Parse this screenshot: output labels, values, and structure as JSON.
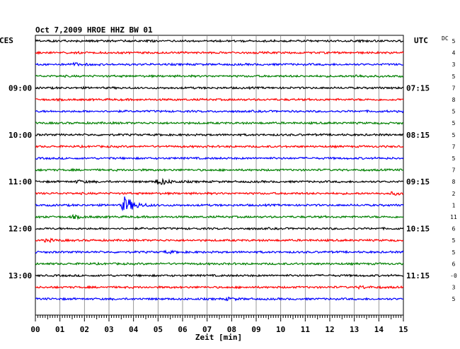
{
  "chart_data": {
    "type": "line",
    "title": "Oct 7,2009   HROE HHZ BW 01",
    "xlabel": "Zeit [min]",
    "left_axis_label": "CES",
    "right_axis_label": "UTC",
    "offset_column_label": "DC",
    "xlim": [
      0,
      15
    ],
    "x_ticks": [
      "00",
      "01",
      "02",
      "03",
      "04",
      "05",
      "06",
      "07",
      "08",
      "09",
      "10",
      "11",
      "12",
      "13",
      "14",
      "15"
    ],
    "left_time_labels": [
      {
        "row": 4,
        "text": "09:00"
      },
      {
        "row": 8,
        "text": "10:00"
      },
      {
        "row": 12,
        "text": "11:00"
      },
      {
        "row": 16,
        "text": "12:00"
      },
      {
        "row": 20,
        "text": "13:00"
      }
    ],
    "right_time_labels": [
      {
        "row": 4,
        "text": "07:15"
      },
      {
        "row": 8,
        "text": "08:15"
      },
      {
        "row": 12,
        "text": "09:15"
      },
      {
        "row": 16,
        "text": "10:15"
      },
      {
        "row": 20,
        "text": "11:15"
      }
    ],
    "trace_colors": [
      "#000000",
      "#ff0000",
      "#0000ff",
      "#008000"
    ],
    "offsets": [
      "5",
      "4",
      "3",
      "5",
      "7",
      "8",
      "5",
      "5",
      "5",
      "7",
      "5",
      "7",
      "8",
      "2",
      "1",
      "11",
      "6",
      "5",
      "5",
      "6",
      "-0",
      "3",
      "5"
    ],
    "events": [
      {
        "row": 2,
        "minute": 1.5,
        "amplitude": 1.6
      },
      {
        "row": 3,
        "minute": 13.0,
        "amplitude": 1.4
      },
      {
        "row": 12,
        "minute": 1.7,
        "amplitude": 1.4
      },
      {
        "row": 12,
        "minute": 5.0,
        "amplitude": 4.5
      },
      {
        "row": 13,
        "minute": 14.5,
        "amplitude": 1.5
      },
      {
        "row": 14,
        "minute": 3.6,
        "amplitude": 12.0
      },
      {
        "row": 15,
        "minute": 1.5,
        "amplitude": 1.6
      },
      {
        "row": 17,
        "minute": 0.4,
        "amplitude": 1.6
      },
      {
        "row": 18,
        "minute": 5.3,
        "amplitude": 1.3
      },
      {
        "row": 21,
        "minute": 13.2,
        "amplitude": 1.3
      },
      {
        "row": 22,
        "minute": 7.8,
        "amplitude": 1.3
      }
    ],
    "grid": true
  }
}
